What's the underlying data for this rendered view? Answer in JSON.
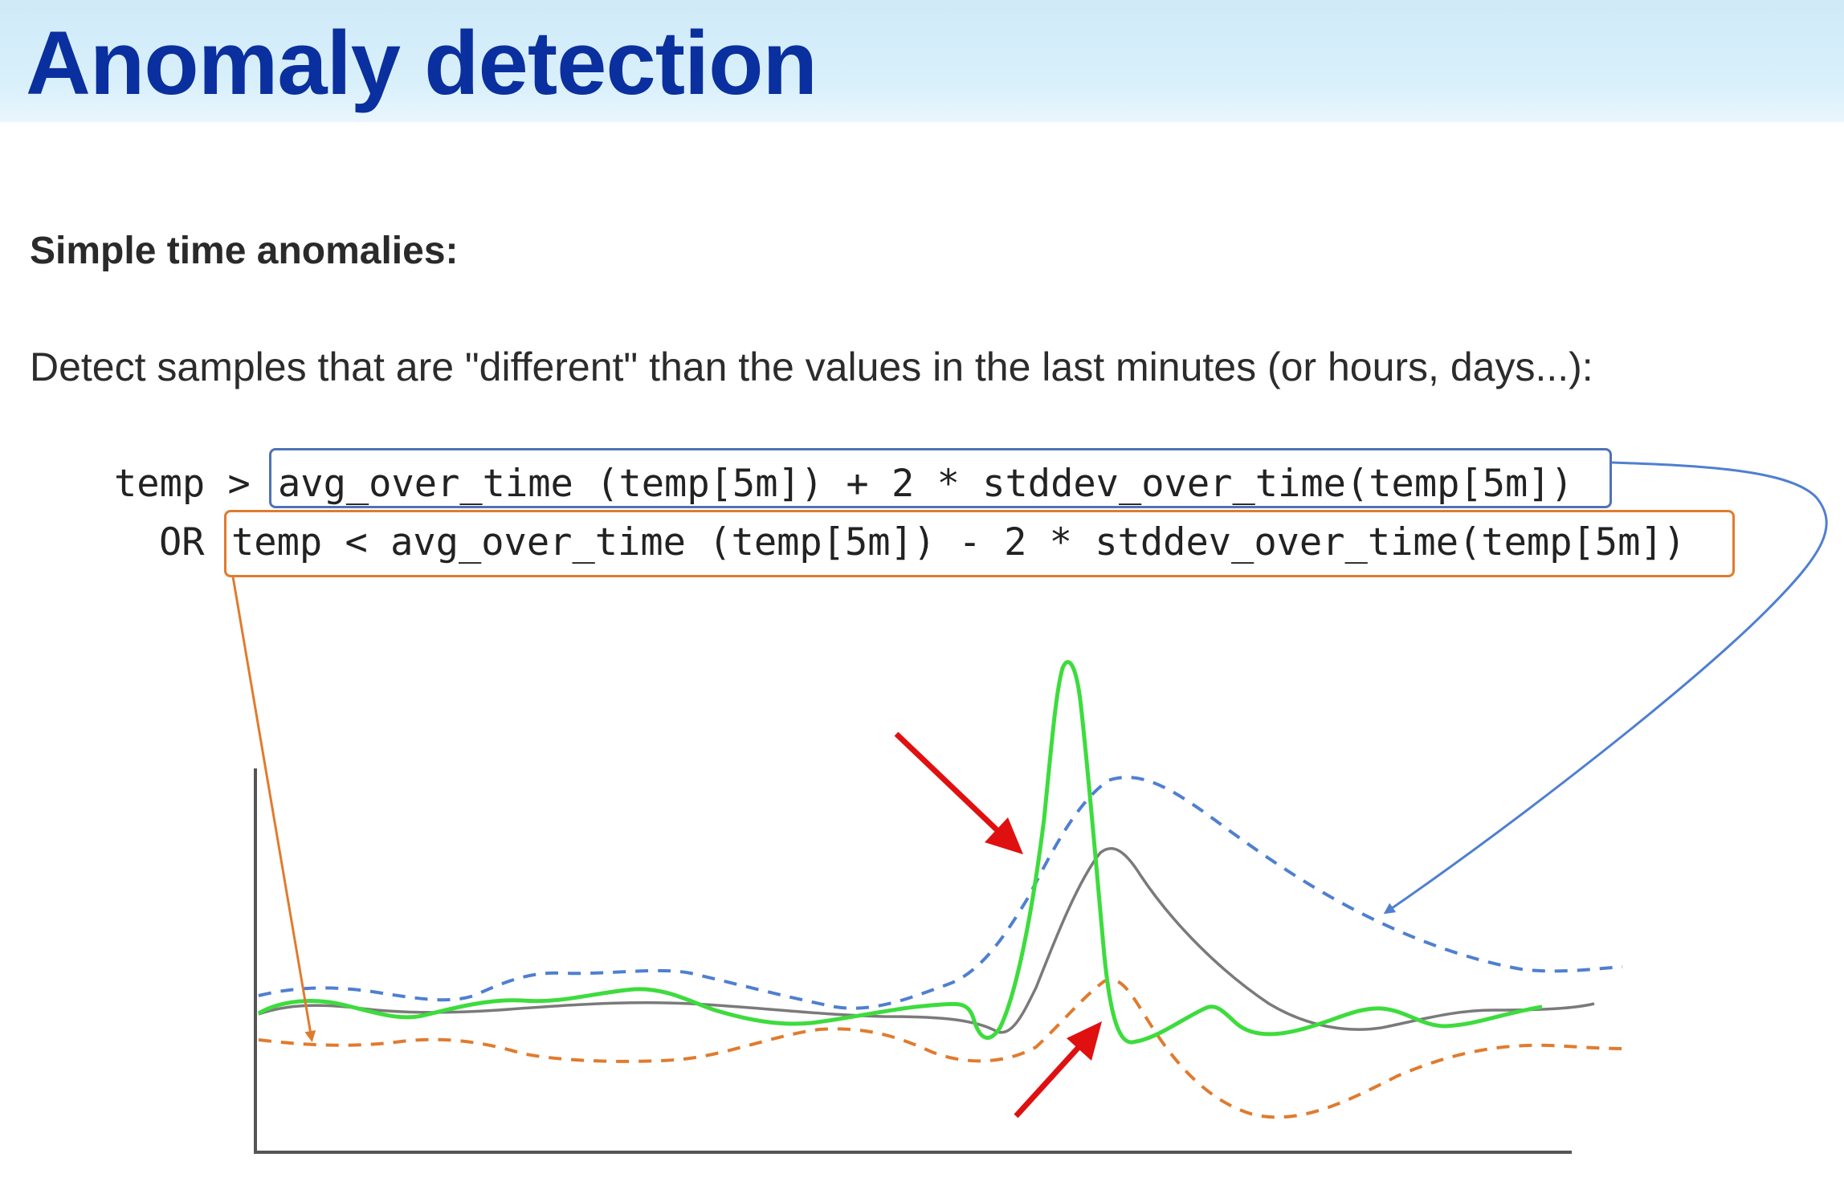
{
  "title": "Anomaly detection",
  "subheading": "Simple time anomalies:",
  "description": "Detect samples that are \"different\" than the values in the last minutes (or hours, days...):",
  "query": {
    "line1_prefix": "temp >",
    "line1_expr": "avg_over_time (temp[5m]) + 2 * stddev_over_time(temp[5m])",
    "line2_prefix": "OR",
    "line2_expr": "temp < avg_over_time (temp[5m]) - 2 * stddev_over_time(temp[5m])"
  },
  "colors": {
    "title": "#0a2f9e",
    "upper_band": "#4f7fd0",
    "lower_band": "#e07b2e",
    "signal": "#3ddc3d",
    "average": "#7a7a7a",
    "anomaly_arrow": "#e01010"
  }
}
